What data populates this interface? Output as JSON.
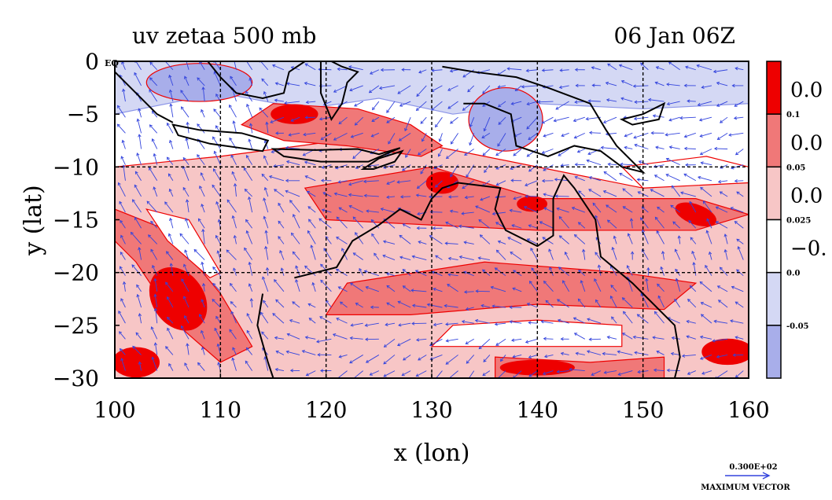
{
  "chart_data": {
    "type": "heatmap",
    "title": "uv zetaa 500 mb",
    "subtitle": "06 Jan 06Z",
    "xlabel": "x (lon)",
    "ylabel": "y (lat)",
    "xlim": [
      100,
      160
    ],
    "ylim": [
      -30,
      0
    ],
    "x_ticks": [
      "100",
      "110",
      "120",
      "130",
      "140",
      "150",
      "160"
    ],
    "y_ticks": [
      "0",
      "−5",
      "−10",
      "−15",
      "−20",
      "−25",
      "−30"
    ],
    "eq_label": "EQ",
    "grid": true,
    "colorbar": {
      "levels": [
        "0.1",
        "0.05",
        "0.025",
        "0.0",
        "-0.05"
      ],
      "overflow_labels": [
        "0.0",
        "0.0",
        "0.0",
        "−0."
      ],
      "colors": [
        "#ee0000",
        "#f07878",
        "#f7c6c6",
        "#ffffff",
        "#d4d8f4",
        "#a8aeea"
      ]
    },
    "contour_colors": {
      "positive_line": "#ee0000",
      "negative_line": "#8c95e8",
      "coast": "#000000"
    },
    "vector_legend": {
      "value": "0.300E+02",
      "label": "MAXIMUM VECTOR"
    }
  }
}
